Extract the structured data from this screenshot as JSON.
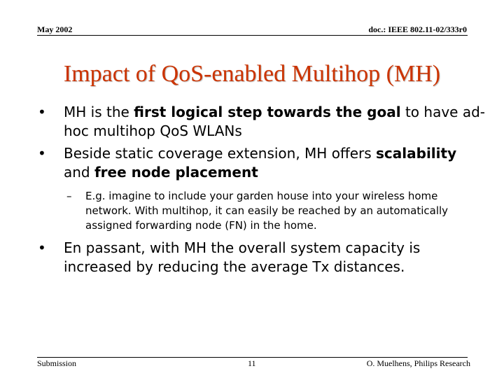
{
  "header": {
    "date": "May 2002",
    "doc": "doc.: IEEE 802.11-02/333r0"
  },
  "title": "Impact of QoS-enabled Multihop (MH)",
  "bullets": [
    {
      "marker": "•",
      "parts": [
        {
          "text": "MH is the ",
          "bold": false
        },
        {
          "text": "first logical step towards the goal",
          "bold": true
        },
        {
          "text": " to have ad-hoc multihop QoS WLANs",
          "bold": false
        }
      ]
    },
    {
      "marker": "•",
      "parts": [
        {
          "text": "Beside static coverage extension, MH offers ",
          "bold": false
        },
        {
          "text": "scalability",
          "bold": true
        },
        {
          "text": " and ",
          "bold": false
        },
        {
          "text": "free node placement",
          "bold": true
        }
      ],
      "sub": {
        "marker": "–",
        "text": "E.g. imagine to include your garden house into your wireless home network. With multihop, it can easily be reached by an automatically assigned forwarding node (FN) in the home."
      }
    },
    {
      "marker": "•",
      "parts": [
        {
          "text": "En passant, with MH the overall system capacity is increased by reducing the average Tx distances.",
          "bold": false
        }
      ]
    }
  ],
  "footer": {
    "left": "Submission",
    "page": "11",
    "right": "O. Muelhens, Philips Research"
  },
  "colors": {
    "title": "#cc3300",
    "text": "#000000",
    "background": "#ffffff"
  }
}
